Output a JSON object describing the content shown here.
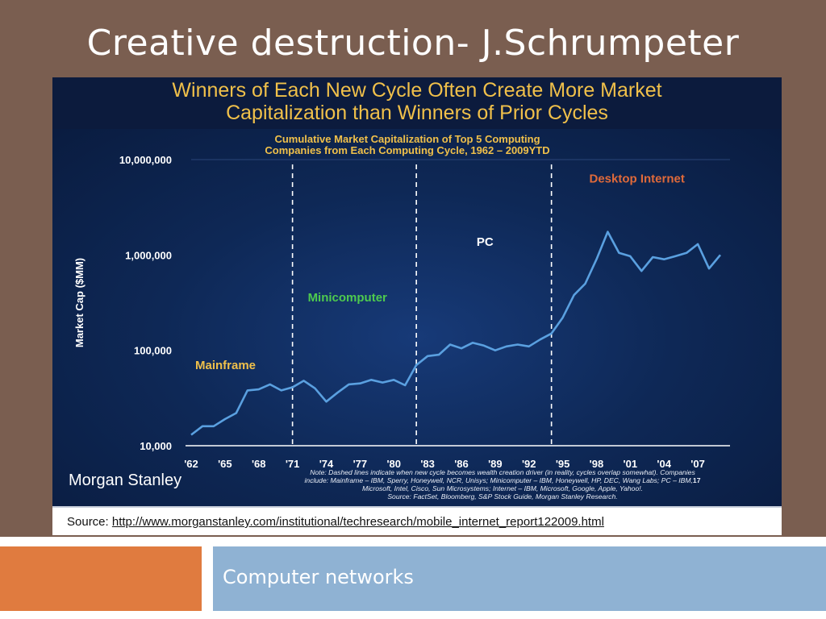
{
  "slide": {
    "title": "Creative destruction- J.Schrumpeter",
    "footer": "Computer networks",
    "background": "#7a5e50",
    "footer_left_color": "#e07b3f",
    "footer_right_color": "#8fb2d3"
  },
  "figure": {
    "headline": "Winners of Each New Cycle Often Create More Market Capitalization than Winners of Prior Cycles",
    "headline_lines": [
      "Winners of Each New Cycle Often Create More Market",
      "Capitalization than Winners of Prior Cycles"
    ],
    "logo": "Morgan Stanley",
    "note_lines": [
      "Note: Dashed lines indicate when new cycle becomes wealth creation driver (in reality, cycles overlap somewhat). Companies",
      "include: Mainframe – IBM, Sperry, Honeywell, NCR, Unisys; Minicomputer – IBM, Honeywell, HP, DEC, Wang Labs; PC – IBM,",
      "Microsoft, Intel, Cisco, Sun Microsystems; Internet – IBM, Microsoft, Google, Apple, Yahoo!.",
      "Source: FactSet, Bloomberg, S&P Stock Guide, Morgan Stanley Research."
    ],
    "page_number": "17",
    "source_label": "Source: ",
    "source_url": "http://www.morganstanley.com/institutional/techresearch/mobile_internet_report122009.html",
    "colors": {
      "background": "#0a1a3c",
      "headline": "#f0c04a",
      "line": "#5aa0e0",
      "mainframe": "#f0c04a",
      "minicomputer": "#4ecb4e",
      "pc": "#ffffff",
      "desktop_internet": "#e06a3a"
    }
  },
  "chart_data": {
    "type": "line",
    "title": "Cumulative Market Capitalization of Top 5 Computing Companies from Each Computing Cycle, 1962 – 2009YTD",
    "title_lines": [
      "Cumulative Market Capitalization of Top 5 Computing",
      "Companies from Each Computing Cycle, 1962 – 2009YTD"
    ],
    "xlabel": "",
    "ylabel": "Market Cap ($MM)",
    "y_scale": "log",
    "ylim": [
      10000,
      10000000
    ],
    "y_ticks": [
      10000,
      100000,
      1000000,
      10000000
    ],
    "y_tick_labels": [
      "10,000",
      "100,000",
      "1,000,000",
      "10,000,000"
    ],
    "xlim": [
      1962,
      2009
    ],
    "x_ticks": [
      1962,
      1965,
      1968,
      1971,
      1974,
      1977,
      1980,
      1983,
      1986,
      1989,
      1992,
      1995,
      1998,
      2001,
      2004,
      2007
    ],
    "x_tick_labels": [
      "'62",
      "'65",
      "'68",
      "'71",
      "'74",
      "'77",
      "'80",
      "'83",
      "'86",
      "'89",
      "'92",
      "'95",
      "'98",
      "'01",
      "'04",
      "'07"
    ],
    "grid": false,
    "cycle_boundaries": [
      1971,
      1982,
      1994
    ],
    "cycles": [
      {
        "name": "Mainframe",
        "label_year": 1962,
        "label_value": 70000
      },
      {
        "name": "Minicomputer",
        "label_year": 1972,
        "label_value": 360000
      },
      {
        "name": "PC",
        "label_year": 1987,
        "label_value": 1370000
      },
      {
        "name": "Desktop Internet",
        "label_year": 1997,
        "label_value": 6300000
      }
    ],
    "series": [
      {
        "x": [
          1962,
          1963,
          1964,
          1965,
          1966,
          1967,
          1968,
          1969,
          1970,
          1971,
          1972,
          1973,
          1974,
          1975,
          1976,
          1977,
          1978,
          1979,
          1980,
          1981,
          1982,
          1983,
          1984,
          1985,
          1986,
          1987,
          1988,
          1989,
          1990,
          1991,
          1992,
          1993,
          1994,
          1995,
          1996,
          1997,
          1998,
          1999,
          2000,
          2001,
          2002,
          2003,
          2004,
          2005,
          2006,
          2007,
          2008,
          2009
        ],
        "values": [
          13000,
          16000,
          16000,
          19000,
          22000,
          38000,
          39000,
          44000,
          38000,
          41000,
          48000,
          40000,
          29000,
          36000,
          44000,
          45000,
          49000,
          46000,
          49000,
          43000,
          70000,
          87000,
          90000,
          115000,
          105000,
          120000,
          112000,
          100000,
          110000,
          115000,
          110000,
          130000,
          150000,
          220000,
          380000,
          500000,
          900000,
          1750000,
          1050000,
          970000,
          680000,
          950000,
          900000,
          970000,
          1050000,
          1300000,
          720000,
          1000000
        ]
      }
    ]
  }
}
